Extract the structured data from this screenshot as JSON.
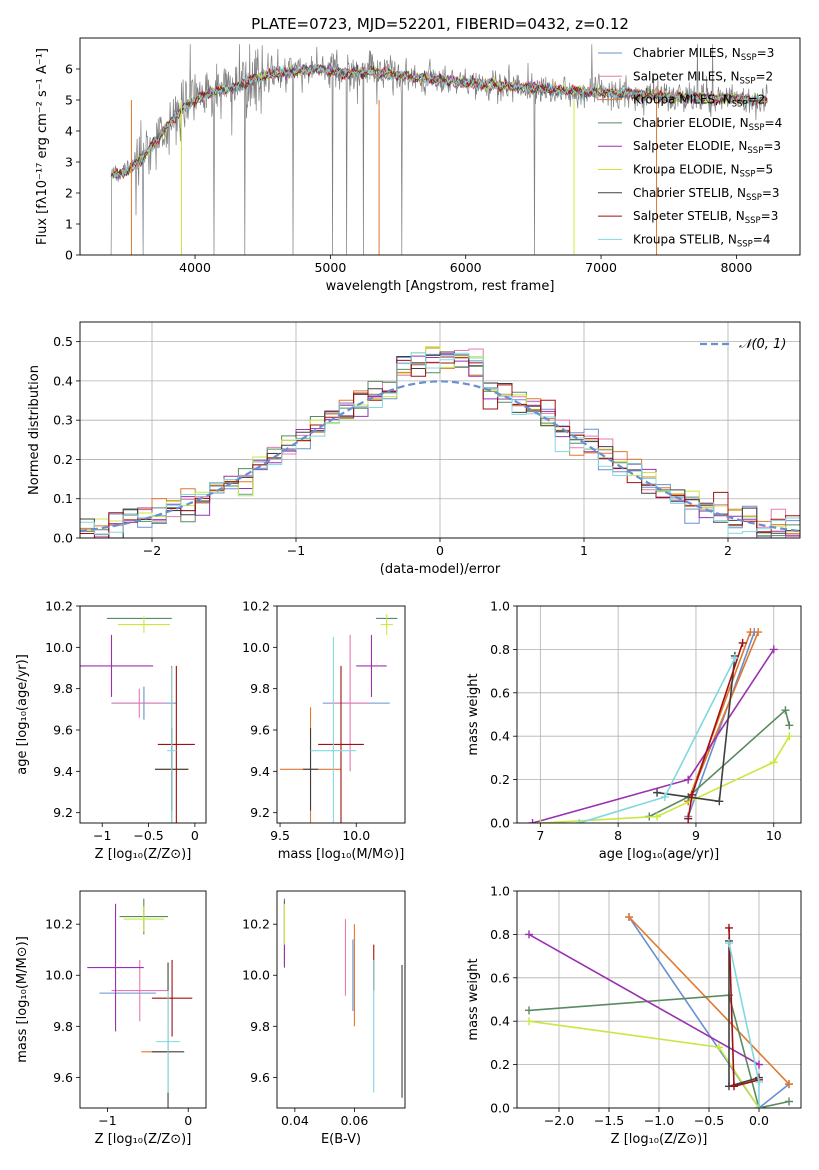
{
  "figure_title": "PLATE=0723, MJD=52201, FIBERID=0432, z=0.12",
  "chart_data": [
    {
      "id": "spectrum",
      "type": "line",
      "xlabel": "wavelength [Angstrom, rest frame]",
      "ylabel": "Flux [fλ10⁻¹⁷ erg cm⁻² s⁻¹ A⁻¹]",
      "xlim": [
        3150,
        8470
      ],
      "ylim": [
        0,
        7
      ],
      "xticks": [
        4000,
        5000,
        6000,
        7000,
        8000
      ],
      "yticks": [
        0,
        1,
        2,
        3,
        4,
        5,
        6
      ],
      "legend_location": "right",
      "legend": [
        "Chabrier MILES, N_SSP=3",
        "Salpeter MILES, N_SSP=2",
        "Kroupa MILES, N_SSP=2",
        "Chabrier ELODIE, N_SSP=4",
        "Salpeter ELODIE, N_SSP=3",
        "Kroupa ELODIE, N_SSP=5",
        "Chabrier STELIB, N_SSP=3",
        "Salpeter STELIB, N_SSP=3",
        "Kroupa STELIB, N_SSP=4"
      ],
      "model_x": [
        3500,
        3600,
        3700,
        3800,
        3900,
        4000,
        4100,
        4200,
        4300,
        4400,
        4500,
        4600,
        4700,
        4800,
        4900,
        5000,
        5100,
        5200,
        5300,
        5400,
        5500,
        5600,
        5700,
        5800,
        5900,
        6000,
        6100,
        6200,
        6300,
        6400,
        6500,
        6600,
        6700,
        6800,
        6900,
        7000,
        7100,
        7200,
        7300,
        7400,
        7500,
        7600,
        7700,
        7800,
        7900,
        8000,
        8100,
        8200
      ],
      "model_y": [
        2.7,
        3.1,
        3.6,
        4.2,
        4.7,
        5.0,
        5.2,
        5.3,
        5.4,
        5.6,
        5.75,
        5.85,
        5.9,
        5.95,
        6.0,
        5.95,
        5.85,
        5.9,
        5.9,
        5.85,
        5.8,
        5.75,
        5.7,
        5.65,
        5.6,
        5.55,
        5.5,
        5.5,
        5.45,
        5.4,
        5.4,
        5.35,
        5.3,
        5.3,
        5.25,
        5.25,
        5.2,
        5.2,
        5.15,
        5.15,
        5.1,
        5.1,
        5.1,
        5.05,
        5.05,
        5.05,
        5.0,
        5.0
      ],
      "data_start": 3380,
      "data_end": 8230
    },
    {
      "id": "residuals",
      "type": "histogram",
      "xlabel": "(data-model)/error",
      "ylabel": "Normed distribution",
      "xlim": [
        -2.5,
        2.5
      ],
      "ylim": [
        0,
        0.55
      ],
      "xticks": [
        -2,
        -1,
        0,
        1,
        2
      ],
      "yticks": [
        0.0,
        0.1,
        0.2,
        0.3,
        0.4,
        0.5
      ],
      "bin_width": 0.1,
      "reference_curve": "N(0,1)",
      "legend": [
        "𝒩(0, 1)"
      ],
      "legend_location": "upper right"
    },
    {
      "id": "age_vs_Z",
      "type": "errorbar",
      "xlabel": "Z [log₁₀(Z/Z⊙)]",
      "ylabel": "age  [log₁₀(age/yr)]",
      "xlim": [
        -1.24,
        0.12
      ],
      "ylim": [
        9.15,
        10.2
      ],
      "xticks": [
        -1,
        -0.5,
        0
      ],
      "yticks": [
        9.2,
        9.4,
        9.6,
        9.8,
        10.0,
        10.2
      ],
      "points": [
        {
          "x": -0.55,
          "y": 9.73,
          "xerr": 0.35,
          "yerr": 0.08
        },
        {
          "x": -0.6,
          "y": 9.73,
          "xerr": 0.28,
          "yerr": 0.07
        },
        {
          "x": -0.25,
          "y": 9.41,
          "xerr": 0.18,
          "yerr": 0.5
        },
        {
          "x": -0.6,
          "y": 10.14,
          "xerr": 0.35,
          "yerr": 0.0
        },
        {
          "x": -0.9,
          "y": 9.91,
          "xerr": 0.45,
          "yerr": 0.15
        },
        {
          "x": -0.55,
          "y": 10.11,
          "xerr": 0.28,
          "yerr": 0.04
        },
        {
          "x": -0.25,
          "y": 9.41,
          "xerr": 0.18,
          "yerr": 0.2
        },
        {
          "x": -0.2,
          "y": 9.53,
          "xerr": 0.2,
          "yerr": 0.38
        },
        {
          "x": -0.25,
          "y": 9.5,
          "xerr": 0.05,
          "yerr": 0.4
        }
      ]
    },
    {
      "id": "age_vs_mass",
      "type": "errorbar",
      "xlabel": "mass [log₁₀(M/M⊙)]",
      "ylabel": "",
      "xlim": [
        9.48,
        10.32
      ],
      "ylim": [
        9.15,
        10.2
      ],
      "xticks": [
        9.5,
        10.0
      ],
      "yticks": [
        9.2,
        9.4,
        9.6,
        9.8,
        10.0,
        10.2
      ],
      "points": [
        {
          "x": 10.0,
          "y": 9.73,
          "xerr": 0.22,
          "yerr": 0.0
        },
        {
          "x": 9.96,
          "y": 9.73,
          "xerr": 0.12,
          "yerr": 0.33
        },
        {
          "x": 9.7,
          "y": 9.41,
          "xerr": 0.2,
          "yerr": 0.3
        },
        {
          "x": 10.2,
          "y": 10.14,
          "xerr": 0.07,
          "yerr": 0.0
        },
        {
          "x": 10.1,
          "y": 9.91,
          "xerr": 0.1,
          "yerr": 0.15
        },
        {
          "x": 10.2,
          "y": 10.11,
          "xerr": 0.04,
          "yerr": 0.05
        },
        {
          "x": 9.7,
          "y": 9.41,
          "xerr": 0.05,
          "yerr": 0.2
        },
        {
          "x": 9.9,
          "y": 9.53,
          "xerr": 0.15,
          "yerr": 0.38
        },
        {
          "x": 9.85,
          "y": 9.5,
          "xerr": 0.15,
          "yerr": 0.55
        }
      ]
    },
    {
      "id": "massweight_vs_age",
      "type": "line",
      "xlabel": "age  [log₁₀(age/yr)]",
      "ylabel": "mass weight",
      "xlim": [
        6.7,
        10.35
      ],
      "ylim": [
        0,
        1
      ],
      "xticks": [
        7,
        8,
        9,
        10
      ],
      "yticks": [
        0.0,
        0.2,
        0.4,
        0.6,
        0.8,
        1.0
      ],
      "series": [
        {
          "color": "#6890d0",
          "x": [
            8.9,
            9.75
          ],
          "y": [
            0.03,
            0.88
          ]
        },
        {
          "color": "#e07830",
          "x": [
            8.9,
            9.8
          ],
          "y": [
            0.1,
            0.88
          ]
        },
        {
          "color": "#e07830",
          "x": [
            8.9,
            9.7
          ],
          "y": [
            0.1,
            0.88
          ]
        },
        {
          "color": "#5a8a60",
          "x": [
            8.4,
            8.9,
            10.15,
            10.2
          ],
          "y": [
            0.03,
            0.12,
            0.52,
            0.45
          ]
        },
        {
          "color": "#9a30b0",
          "x": [
            6.9,
            8.9,
            10.0
          ],
          "y": [
            0.0,
            0.2,
            0.8
          ]
        },
        {
          "color": "#c8e840",
          "x": [
            7.0,
            8.5,
            10.0,
            10.2
          ],
          "y": [
            0.0,
            0.03,
            0.28,
            0.4
          ]
        },
        {
          "color": "#404040",
          "x": [
            8.5,
            9.3,
            9.5
          ],
          "y": [
            0.14,
            0.1,
            0.77
          ]
        },
        {
          "color": "#a01010",
          "x": [
            8.9,
            8.95,
            9.6
          ],
          "y": [
            0.02,
            0.13,
            0.83
          ]
        },
        {
          "color": "#80d8e0",
          "x": [
            7.5,
            8.6,
            9.5
          ],
          "y": [
            0.0,
            0.12,
            0.76
          ]
        }
      ]
    },
    {
      "id": "mass_vs_Z",
      "type": "errorbar",
      "xlabel": "Z [log₁₀(Z/Z⊙)]",
      "ylabel": "mass [log₁₀(M/M⊙)]",
      "xlim": [
        -1.34,
        0.22
      ],
      "ylim": [
        9.48,
        10.33
      ],
      "xticks": [
        -1,
        0
      ],
      "yticks": [
        9.6,
        9.8,
        10.0,
        10.2
      ],
      "points": [
        {
          "x": -0.75,
          "y": 9.93,
          "xerr": 0.35,
          "yerr": 0.0
        },
        {
          "x": -0.6,
          "y": 9.94,
          "xerr": 0.35,
          "yerr": 0.12
        },
        {
          "x": -0.4,
          "y": 9.7,
          "xerr": 0.18,
          "yerr": 0.0
        },
        {
          "x": -0.55,
          "y": 10.23,
          "xerr": 0.3,
          "yerr": 0.07
        },
        {
          "x": -0.9,
          "y": 10.03,
          "xerr": 0.35,
          "yerr": 0.25
        },
        {
          "x": -0.55,
          "y": 10.22,
          "xerr": 0.25,
          "yerr": 0.05
        },
        {
          "x": -0.25,
          "y": 9.7,
          "xerr": 0.2,
          "yerr": 0.35
        },
        {
          "x": -0.2,
          "y": 9.91,
          "xerr": 0.25,
          "yerr": 0.15
        },
        {
          "x": -0.25,
          "y": 9.74,
          "xerr": 0.15,
          "yerr": 0.2
        }
      ]
    },
    {
      "id": "mass_vs_EBV",
      "type": "errorbar",
      "xlabel": "E(B-V)",
      "ylabel": "",
      "xlim": [
        0.034,
        0.077
      ],
      "ylim": [
        9.48,
        10.33
      ],
      "xticks": [
        0.04,
        0.06
      ],
      "yticks": [
        9.6,
        9.8,
        10.0,
        10.2
      ],
      "points": [
        {
          "x": 0.0595,
          "y": 10.0,
          "xerr": 0,
          "yerr": 0.14,
          "color": "#6890d0"
        },
        {
          "x": 0.06,
          "y": 10.0,
          "xerr": 0,
          "yerr": 0.2,
          "color": "#e07830"
        },
        {
          "x": 0.0365,
          "y": 10.17,
          "xerr": 0,
          "yerr": 0.13,
          "color": "#5a8a60"
        },
        {
          "x": 0.0365,
          "y": 10.16,
          "xerr": 0,
          "yerr": 0.13,
          "color": "#9a30b0"
        },
        {
          "x": 0.0365,
          "y": 10.2,
          "xerr": 0,
          "yerr": 0.08,
          "color": "#c8e840"
        },
        {
          "x": 0.076,
          "y": 9.78,
          "xerr": 0,
          "yerr": 0.26,
          "color": "#404040"
        },
        {
          "x": 0.0665,
          "y": 10.03,
          "xerr": 0,
          "yerr": 0.09,
          "color": "#a01010"
        },
        {
          "x": 0.0665,
          "y": 9.8,
          "xerr": 0,
          "yerr": 0.26,
          "color": "#80d8e0"
        },
        {
          "x": 0.057,
          "y": 10.07,
          "xerr": 0,
          "yerr": 0.15,
          "color": "#e878b0"
        }
      ]
    },
    {
      "id": "massweight_vs_Z",
      "type": "line",
      "xlabel": "Z [log₁₀(Z/Z⊙)]",
      "ylabel": "mass weight",
      "xlim": [
        -2.42,
        0.42
      ],
      "ylim": [
        0,
        1
      ],
      "xticks": [
        -2.0,
        -1.5,
        -1.0,
        -0.5,
        0.0
      ],
      "yticks": [
        0.0,
        0.2,
        0.4,
        0.6,
        0.8,
        1.0
      ],
      "series": [
        {
          "color": "#6890d0",
          "x": [
            -1.3,
            0.0,
            0.3
          ],
          "y": [
            0.88,
            0.0,
            0.11
          ]
        },
        {
          "color": "#e07830",
          "x": [
            -1.3,
            0.3
          ],
          "y": [
            0.88,
            0.11
          ]
        },
        {
          "color": "#5a8a60",
          "x": [
            -2.3,
            -0.3,
            0.0,
            0.3
          ],
          "y": [
            0.45,
            0.52,
            0.0,
            0.03
          ]
        },
        {
          "color": "#9a30b0",
          "x": [
            -2.3,
            0.0
          ],
          "y": [
            0.8,
            0.2
          ]
        },
        {
          "color": "#c8e840",
          "x": [
            -2.3,
            -0.4,
            0.0
          ],
          "y": [
            0.4,
            0.28,
            0.0
          ]
        },
        {
          "color": "#404040",
          "x": [
            -0.3,
            -0.3,
            0.0
          ],
          "y": [
            0.77,
            0.1,
            0.14
          ]
        },
        {
          "color": "#a01010",
          "x": [
            -0.3,
            -0.25,
            0.0
          ],
          "y": [
            0.83,
            0.1,
            0.13
          ]
        },
        {
          "color": "#80d8e0",
          "x": [
            -0.3,
            0.0,
            0.0
          ],
          "y": [
            0.76,
            0.12,
            0.0
          ]
        }
      ]
    }
  ],
  "colors": [
    "#6890d0",
    "#e878b0",
    "#e07830",
    "#5a8a60",
    "#9a30b0",
    "#c8e840",
    "#404040",
    "#a01010",
    "#80d8e0"
  ],
  "spectrum_color": "#808080",
  "legend_text": [
    "Chabrier MILES, N",
    "Salpeter MILES, N",
    "Kroupa MILES, N",
    "Chabrier ELODIE, N",
    "Salpeter ELODIE, N",
    "Kroupa ELODIE, N",
    "Chabrier STELIB, N",
    "Salpeter STELIB, N",
    "Kroupa STELIB, N"
  ],
  "legend_sub": "SSP",
  "legend_counts": [
    "=3",
    "=2",
    "=2",
    "=4",
    "=3",
    "=5",
    "=3",
    "=3",
    "=4"
  ]
}
